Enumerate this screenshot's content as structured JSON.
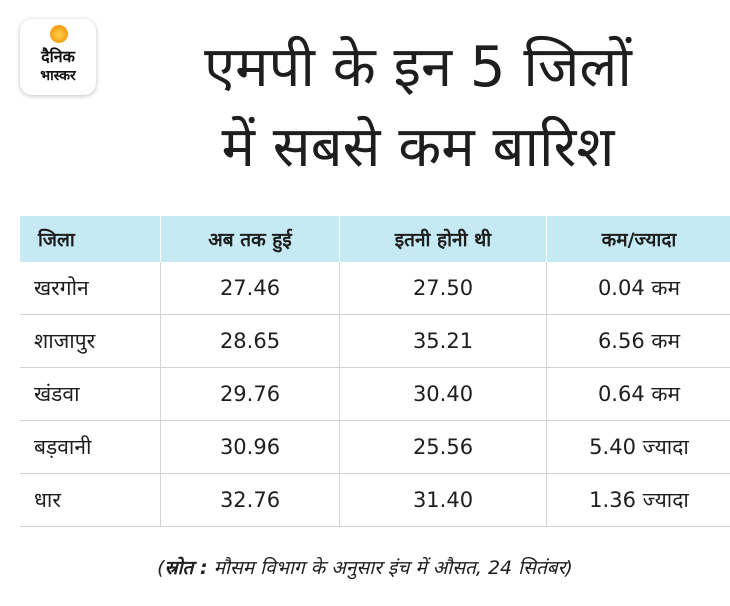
{
  "logo": {
    "line1": "दैनिक",
    "line2": "भास्कर",
    "colors": {
      "sun": "#f7a21b",
      "text": "#111111"
    }
  },
  "title": {
    "line1": "एमपी के इन 5 जिलों",
    "line2": "में सबसे कम बारिश"
  },
  "chart_data": {
    "type": "table",
    "columns": [
      "जिला",
      "अब तक हुई",
      "इतनी होनी थी",
      "कम/ज्यादा"
    ],
    "rows": [
      {
        "district": "खरगोन",
        "fell": "27.46",
        "expected": "27.50",
        "diff": "0.04 कम"
      },
      {
        "district": "शाजापुर",
        "fell": "28.65",
        "expected": "35.21",
        "diff": "6.56 कम"
      },
      {
        "district": "खंडवा",
        "fell": "29.76",
        "expected": "30.40",
        "diff": "0.64 कम"
      },
      {
        "district": "बड़वानी",
        "fell": "30.96",
        "expected": "25.56",
        "diff": "5.40 ज्यादा"
      },
      {
        "district": "धार",
        "fell": "32.76",
        "expected": "31.40",
        "diff": "1.36 ज्यादा"
      }
    ],
    "header_color": "#c5eaf3"
  },
  "source": {
    "label": "स्रोत :",
    "text": "मौसम विभाग के अनुसार इंच में औसत, 24 सितंबर"
  }
}
